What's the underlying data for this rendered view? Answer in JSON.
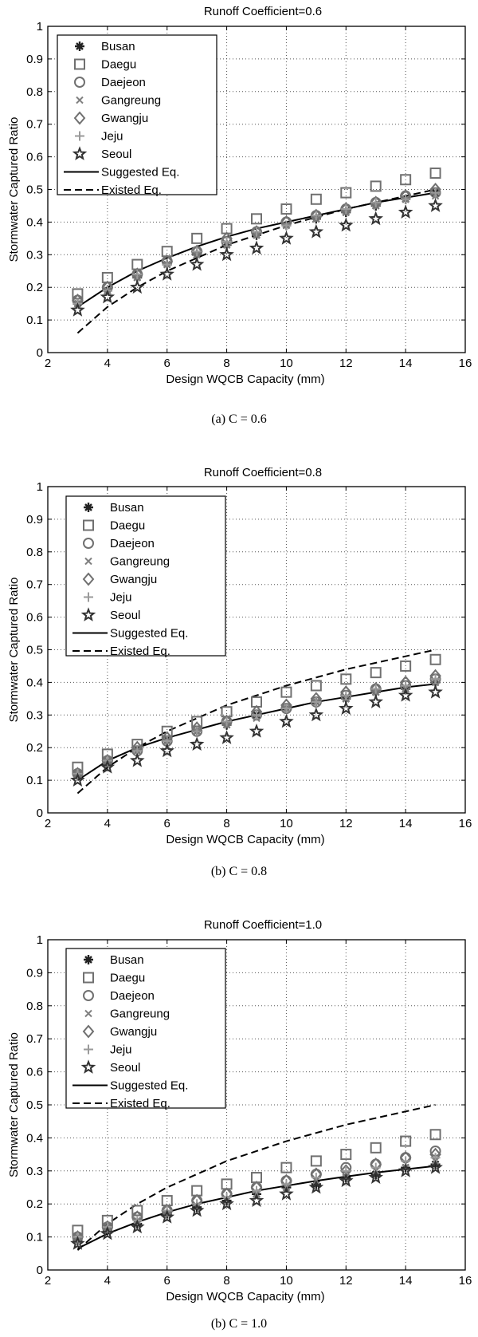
{
  "chart_data": [
    {
      "type": "scatter",
      "title": "Runoff Coefficient=0.6",
      "xlabel": "Design WQCB Capacity (mm)",
      "ylabel": "Stormwater Captured Ratio",
      "xlim": [
        2,
        16
      ],
      "ylim": [
        0,
        1
      ],
      "xticks": [
        "2",
        "4",
        "6",
        "8",
        "10",
        "12",
        "14",
        "16"
      ],
      "yticks": [
        "0",
        "0.1",
        "0.2",
        "0.3",
        "0.4",
        "0.5",
        "0.6",
        "0.7",
        "0.8",
        "0.9",
        "1"
      ],
      "grid": true,
      "legend_position": "top-left",
      "caption": "(a)  C = 0.6",
      "x": [
        3,
        4,
        5,
        6,
        7,
        8,
        9,
        10,
        11,
        12,
        13,
        14,
        15
      ],
      "series": [
        {
          "name": "Busan",
          "marker": "asterisk",
          "values": [
            0.15,
            0.19,
            0.23,
            0.27,
            0.3,
            0.33,
            0.36,
            0.39,
            0.41,
            0.43,
            0.45,
            0.47,
            0.49
          ]
        },
        {
          "name": "Daegu",
          "marker": "square",
          "values": [
            0.18,
            0.23,
            0.27,
            0.31,
            0.35,
            0.38,
            0.41,
            0.44,
            0.47,
            0.49,
            0.51,
            0.53,
            0.55
          ]
        },
        {
          "name": "Daejeon",
          "marker": "circle",
          "values": [
            0.16,
            0.2,
            0.24,
            0.28,
            0.31,
            0.34,
            0.37,
            0.4,
            0.42,
            0.44,
            0.46,
            0.48,
            0.49
          ]
        },
        {
          "name": "Gangreung",
          "marker": "x",
          "values": [
            0.15,
            0.19,
            0.23,
            0.27,
            0.3,
            0.33,
            0.36,
            0.39,
            0.41,
            0.43,
            0.45,
            0.47,
            0.48
          ]
        },
        {
          "name": "Gwangju",
          "marker": "diamond",
          "values": [
            0.16,
            0.2,
            0.24,
            0.28,
            0.31,
            0.35,
            0.37,
            0.4,
            0.42,
            0.44,
            0.46,
            0.48,
            0.5
          ]
        },
        {
          "name": "Jeju",
          "marker": "plus",
          "values": [
            0.15,
            0.19,
            0.24,
            0.27,
            0.31,
            0.34,
            0.37,
            0.39,
            0.42,
            0.44,
            0.46,
            0.47,
            0.49
          ]
        },
        {
          "name": "Seoul",
          "marker": "star",
          "values": [
            0.13,
            0.17,
            0.2,
            0.24,
            0.27,
            0.3,
            0.32,
            0.35,
            0.37,
            0.39,
            0.41,
            0.43,
            0.45
          ]
        },
        {
          "name": "Suggested Eq.",
          "style": "solid",
          "values": [
            0.14,
            0.2,
            0.25,
            0.29,
            0.325,
            0.355,
            0.38,
            0.4,
            0.42,
            0.44,
            0.46,
            0.475,
            0.49
          ]
        },
        {
          "name": "Existed Eq.",
          "style": "dashed",
          "values": [
            0.06,
            0.14,
            0.2,
            0.25,
            0.29,
            0.33,
            0.36,
            0.39,
            0.415,
            0.44,
            0.46,
            0.48,
            0.5
          ]
        }
      ]
    },
    {
      "type": "scatter",
      "title": "Runoff Coefficient=0.8",
      "xlabel": "Design WQCB Capacity (mm)",
      "ylabel": "Stormwater Captured Ratio",
      "xlim": [
        2,
        16
      ],
      "ylim": [
        0,
        1
      ],
      "xticks": [
        "2",
        "4",
        "6",
        "8",
        "10",
        "12",
        "14",
        "16"
      ],
      "yticks": [
        "0",
        "0.1",
        "0.2",
        "0.3",
        "0.4",
        "0.5",
        "0.6",
        "0.7",
        "0.8",
        "0.9",
        "1"
      ],
      "grid": true,
      "legend_position": "top-left",
      "caption": "(b)  C = 0.8",
      "x": [
        3,
        4,
        5,
        6,
        7,
        8,
        9,
        10,
        11,
        12,
        13,
        14,
        15
      ],
      "series": [
        {
          "name": "Busan",
          "marker": "asterisk",
          "values": [
            0.12,
            0.15,
            0.19,
            0.22,
            0.25,
            0.27,
            0.3,
            0.32,
            0.34,
            0.35,
            0.37,
            0.38,
            0.4
          ]
        },
        {
          "name": "Daegu",
          "marker": "square",
          "values": [
            0.14,
            0.18,
            0.21,
            0.25,
            0.28,
            0.31,
            0.34,
            0.37,
            0.39,
            0.41,
            0.43,
            0.45,
            0.47
          ]
        },
        {
          "name": "Daejeon",
          "marker": "circle",
          "values": [
            0.12,
            0.16,
            0.19,
            0.22,
            0.25,
            0.28,
            0.3,
            0.32,
            0.34,
            0.36,
            0.38,
            0.39,
            0.41
          ]
        },
        {
          "name": "Gangreung",
          "marker": "x",
          "values": [
            0.12,
            0.15,
            0.19,
            0.22,
            0.25,
            0.27,
            0.29,
            0.32,
            0.34,
            0.35,
            0.37,
            0.38,
            0.4
          ]
        },
        {
          "name": "Gwangju",
          "marker": "diamond",
          "values": [
            0.12,
            0.16,
            0.2,
            0.23,
            0.26,
            0.28,
            0.31,
            0.33,
            0.35,
            0.37,
            0.38,
            0.4,
            0.42
          ]
        },
        {
          "name": "Jeju",
          "marker": "plus",
          "values": [
            0.12,
            0.16,
            0.19,
            0.22,
            0.25,
            0.28,
            0.3,
            0.32,
            0.34,
            0.36,
            0.38,
            0.39,
            0.41
          ]
        },
        {
          "name": "Seoul",
          "marker": "star",
          "values": [
            0.1,
            0.14,
            0.16,
            0.19,
            0.21,
            0.23,
            0.25,
            0.28,
            0.3,
            0.32,
            0.34,
            0.36,
            0.37
          ]
        },
        {
          "name": "Suggested Eq.",
          "style": "solid",
          "values": [
            0.1,
            0.16,
            0.2,
            0.23,
            0.255,
            0.28,
            0.3,
            0.32,
            0.34,
            0.355,
            0.37,
            0.385,
            0.395
          ]
        },
        {
          "name": "Existed Eq.",
          "style": "dashed",
          "values": [
            0.06,
            0.14,
            0.2,
            0.25,
            0.29,
            0.33,
            0.36,
            0.39,
            0.415,
            0.44,
            0.46,
            0.48,
            0.5
          ]
        }
      ]
    },
    {
      "type": "scatter",
      "title": "Runoff Coefficient=1.0",
      "xlabel": "Design WQCB Capacity (mm)",
      "ylabel": "Stormwater Captured Ratio",
      "xlim": [
        2,
        16
      ],
      "ylim": [
        0,
        1
      ],
      "xticks": [
        "2",
        "4",
        "6",
        "8",
        "10",
        "12",
        "14",
        "16"
      ],
      "yticks": [
        "0",
        "0.1",
        "0.2",
        "0.3",
        "0.4",
        "0.5",
        "0.6",
        "0.7",
        "0.8",
        "0.9",
        "1"
      ],
      "grid": true,
      "legend_position": "top-left",
      "caption": "(b)  C = 1.0",
      "x": [
        3,
        4,
        5,
        6,
        7,
        8,
        9,
        10,
        11,
        12,
        13,
        14,
        15
      ],
      "series": [
        {
          "name": "Busan",
          "marker": "asterisk",
          "values": [
            0.09,
            0.12,
            0.14,
            0.17,
            0.19,
            0.21,
            0.23,
            0.25,
            0.26,
            0.28,
            0.29,
            0.31,
            0.32
          ]
        },
        {
          "name": "Daegu",
          "marker": "square",
          "values": [
            0.12,
            0.15,
            0.18,
            0.21,
            0.24,
            0.26,
            0.28,
            0.31,
            0.33,
            0.35,
            0.37,
            0.39,
            0.41
          ]
        },
        {
          "name": "Daejeon",
          "marker": "circle",
          "values": [
            0.1,
            0.13,
            0.16,
            0.18,
            0.21,
            0.23,
            0.25,
            0.27,
            0.29,
            0.31,
            0.32,
            0.34,
            0.36
          ]
        },
        {
          "name": "Gangreung",
          "marker": "x",
          "values": [
            0.09,
            0.12,
            0.15,
            0.17,
            0.19,
            0.21,
            0.23,
            0.25,
            0.27,
            0.28,
            0.3,
            0.31,
            0.33
          ]
        },
        {
          "name": "Gwangju",
          "marker": "diamond",
          "values": [
            0.1,
            0.13,
            0.16,
            0.18,
            0.21,
            0.23,
            0.25,
            0.27,
            0.29,
            0.3,
            0.32,
            0.34,
            0.35
          ]
        },
        {
          "name": "Jeju",
          "marker": "plus",
          "values": [
            0.1,
            0.13,
            0.15,
            0.18,
            0.2,
            0.22,
            0.24,
            0.26,
            0.28,
            0.3,
            0.31,
            0.33,
            0.34
          ]
        },
        {
          "name": "Seoul",
          "marker": "star",
          "values": [
            0.08,
            0.11,
            0.13,
            0.16,
            0.18,
            0.2,
            0.21,
            0.23,
            0.25,
            0.27,
            0.28,
            0.3,
            0.31
          ]
        },
        {
          "name": "Suggested Eq.",
          "style": "solid",
          "values": [
            0.065,
            0.11,
            0.145,
            0.175,
            0.2,
            0.22,
            0.24,
            0.255,
            0.27,
            0.283,
            0.295,
            0.305,
            0.315
          ]
        },
        {
          "name": "Existed Eq.",
          "style": "dashed",
          "values": [
            0.06,
            0.14,
            0.2,
            0.25,
            0.29,
            0.33,
            0.36,
            0.39,
            0.415,
            0.44,
            0.46,
            0.48,
            0.5
          ]
        }
      ]
    }
  ]
}
